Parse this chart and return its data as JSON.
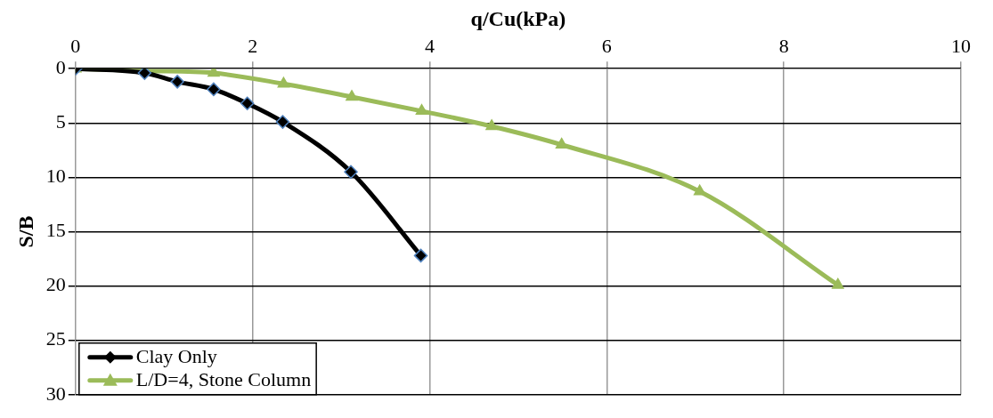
{
  "chart_data": {
    "type": "line",
    "xlabel": "q/Cu(kPa)",
    "ylabel": "S/B",
    "xlim": [
      0,
      10
    ],
    "xticks": [
      0,
      2,
      4,
      6,
      8,
      10
    ],
    "ylim": [
      30,
      0
    ],
    "yticks": [
      0,
      5,
      10,
      15,
      20,
      25,
      30
    ],
    "grid": true,
    "legend": "bottom left",
    "line_style": "solid",
    "series": [
      {
        "name": "Clay Only",
        "color": "#000000",
        "marker": "diamond",
        "x": [
          0,
          0.78,
          1.15,
          1.56,
          1.94,
          2.34,
          3.11,
          3.9
        ],
        "values": [
          0,
          0.4,
          1.2,
          1.9,
          3.2,
          4.9,
          9.5,
          17.2
        ]
      },
      {
        "name": "L/D=4, Stone Column",
        "color": "#9bbb59",
        "marker": "triangle",
        "x": [
          0,
          0.78,
          1.56,
          2.35,
          3.12,
          3.91,
          4.7,
          5.49,
          7.05,
          8.61
        ],
        "values": [
          0,
          0.2,
          0.4,
          1.4,
          2.6,
          3.9,
          5.3,
          7.0,
          11.3,
          19.9
        ]
      }
    ]
  }
}
